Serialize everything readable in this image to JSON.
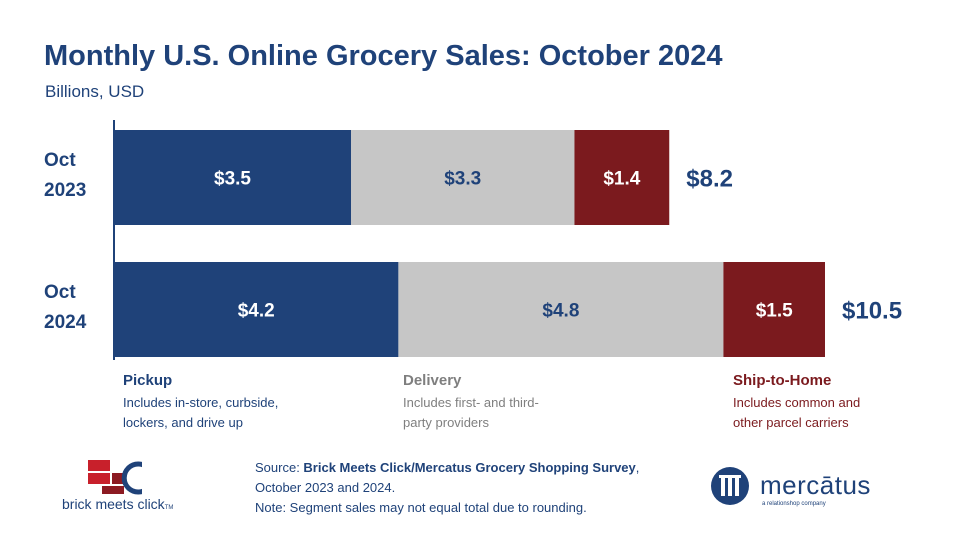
{
  "header": {
    "title": "Monthly U.S. Online Grocery Sales: October 2024",
    "subtitle": "Billions, USD"
  },
  "chart_data": {
    "type": "bar",
    "orientation": "horizontal",
    "stacked": true,
    "title": "Monthly U.S. Online Grocery Sales: October 2024",
    "subtitle": "Billions, USD",
    "categories": [
      "Oct 2023",
      "Oct 2024"
    ],
    "category_lines": [
      [
        "Oct",
        "2023"
      ],
      [
        "Oct",
        "2024"
      ]
    ],
    "series": [
      {
        "name": "Pickup",
        "color": "#1f4279",
        "label_color": "#ffffff",
        "values": [
          3.5,
          4.2
        ],
        "labels": [
          "$3.5",
          "$4.2"
        ]
      },
      {
        "name": "Delivery",
        "color": "#c6c6c6",
        "label_color": "#1f4279",
        "values": [
          3.3,
          4.8
        ],
        "labels": [
          "$3.3",
          "$4.8"
        ]
      },
      {
        "name": "Ship-to-Home",
        "color": "#7b1a1e",
        "label_color": "#ffffff",
        "values": [
          1.4,
          1.5
        ],
        "labels": [
          "$1.4",
          "$1.5"
        ]
      }
    ],
    "totals": [
      8.2,
      10.5
    ],
    "total_labels": [
      "$8.2",
      "$10.5"
    ],
    "xlim": [
      0,
      10.5
    ],
    "grid": false,
    "legend_position": "bottom"
  },
  "legend": [
    {
      "title": "Pickup",
      "desc_lines": [
        "Includes in-store, curbside,",
        "lockers, and drive up"
      ],
      "title_color": "#1f4279",
      "desc_color": "#1f4279"
    },
    {
      "title": "Delivery",
      "desc_lines": [
        "Includes first- and third-",
        "party providers"
      ],
      "title_color": "#7f7f7f",
      "desc_color": "#7f7f7f"
    },
    {
      "title": "Ship-to-Home",
      "desc_lines": [
        "Includes common and",
        "other parcel carriers"
      ],
      "title_color": "#7b1a1e",
      "desc_color": "#7b1a1e"
    }
  ],
  "source": {
    "prefix": "Source: ",
    "bold": "Brick Meets Click/Mercatus Grocery Shopping Survey",
    "suffix": ",",
    "line2": "October 2023 and 2024.",
    "line3": "Note: Segment sales may not equal total due to rounding."
  },
  "logos": {
    "bmc_text": "brick meets click",
    "bmc_tm": "TM",
    "mercatus_word": "mercātus",
    "mercatus_tagline": "a relationshop company"
  },
  "colors": {
    "navy": "#1f4279",
    "gray": "#c6c6c6",
    "maroon": "#7b1a1e",
    "red": "#c8202b"
  }
}
